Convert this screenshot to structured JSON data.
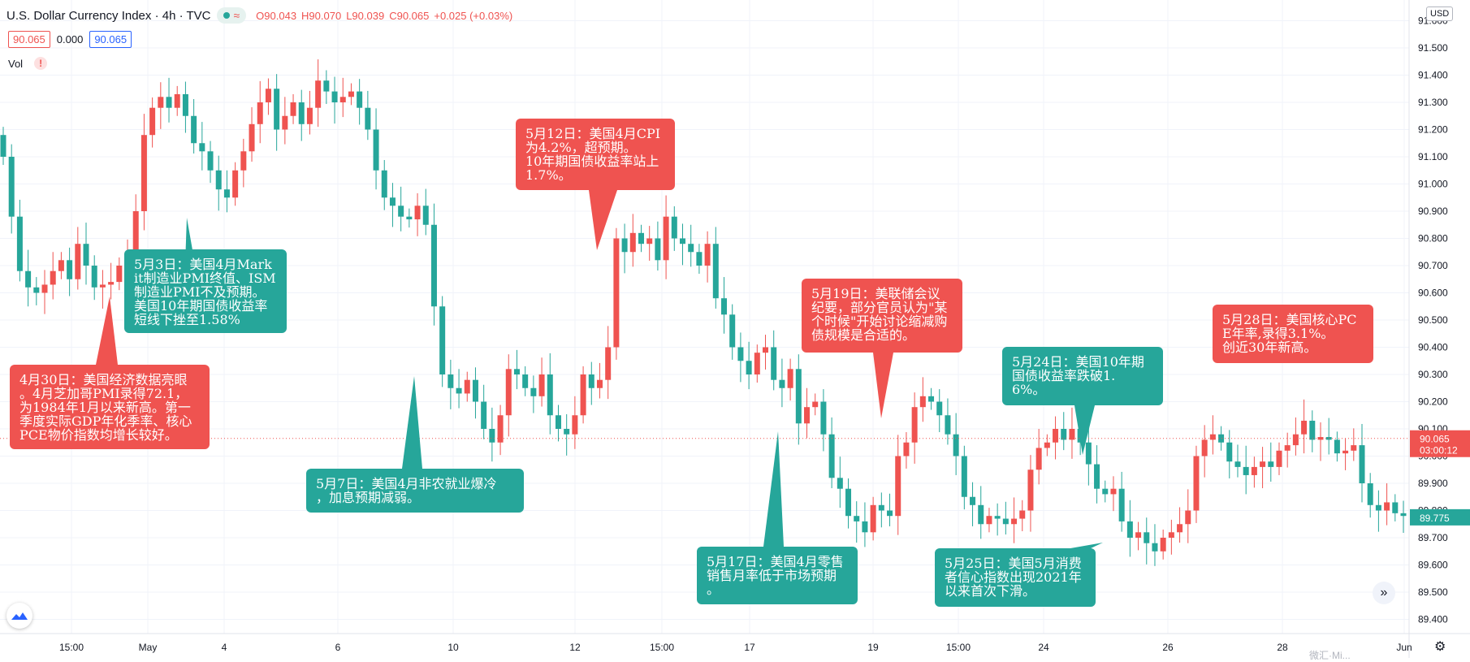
{
  "header": {
    "title": "U.S. Dollar Currency Index · 4h · TVC",
    "open": "O90.043",
    "high": "H90.070",
    "low": "L90.039",
    "close": "C90.065",
    "change": "+0.025 (+0.03%)",
    "bid": "90.065",
    "spread": "0.000",
    "ask": "90.065",
    "vol_label": "Vol",
    "currency": "USD",
    "wave_icon": "≈"
  },
  "colors": {
    "up": "#ef5350",
    "down": "#26a69a",
    "grid": "#f0f3fa"
  },
  "chart_data": {
    "type": "candlestick",
    "y_axis": {
      "ticks": [
        "89.400",
        "89.500",
        "89.600",
        "89.700",
        "89.800",
        "89.900",
        "90.000",
        "90.100",
        "90.200",
        "90.300",
        "90.400",
        "90.500",
        "90.600",
        "90.700",
        "90.800",
        "90.900",
        "91.000",
        "91.100",
        "91.200",
        "91.300",
        "91.400",
        "91.500",
        "91.600"
      ],
      "range": [
        89.37,
        91.65
      ],
      "current_price": "90.065",
      "countdown": "03:00:12",
      "last_label": "89.775"
    },
    "x_axis": {
      "labels": [
        "15:00",
        "May",
        "4",
        "6",
        "10",
        "12",
        "15:00",
        "17",
        "19",
        "15:00",
        "24",
        "26",
        "28",
        "Jun"
      ]
    },
    "closes": [
      91.1,
      90.88,
      90.68,
      90.62,
      90.6,
      90.63,
      90.68,
      90.72,
      90.65,
      90.78,
      90.7,
      90.62,
      90.63,
      90.64,
      90.7,
      90.75,
      90.9,
      91.18,
      91.28,
      91.32,
      91.28,
      91.33,
      91.25,
      91.15,
      91.12,
      91.05,
      90.98,
      90.95,
      91.05,
      91.12,
      91.22,
      91.3,
      91.35,
      91.2,
      91.25,
      91.3,
      91.22,
      91.28,
      91.38,
      91.34,
      91.3,
      91.32,
      91.34,
      91.28,
      91.2,
      91.05,
      90.95,
      90.92,
      90.88,
      90.87,
      90.92,
      90.85,
      90.55,
      90.3,
      90.25,
      90.23,
      90.28,
      90.2,
      90.1,
      90.05,
      90.15,
      90.32,
      90.3,
      90.25,
      90.22,
      90.3,
      90.15,
      90.1,
      90.08,
      90.15,
      90.3,
      90.25,
      90.28,
      90.4,
      90.8,
      90.75,
      90.82,
      90.78,
      90.8,
      90.72,
      90.88,
      90.8,
      90.78,
      90.75,
      90.7,
      90.78,
      90.58,
      90.52,
      90.4,
      90.35,
      90.3,
      90.38,
      90.4,
      90.28,
      90.25,
      90.32,
      90.12,
      90.18,
      90.2,
      90.08,
      89.92,
      89.88,
      89.78,
      89.76,
      89.72,
      89.82,
      89.8,
      89.78,
      90.0,
      90.05,
      90.18,
      90.22,
      90.2,
      90.15,
      90.08,
      90.0,
      89.85,
      89.82,
      89.75,
      89.78,
      89.77,
      89.75,
      89.77,
      89.8,
      89.95,
      90.03,
      90.05,
      90.1,
      90.06,
      90.1,
      90.05,
      89.97,
      89.88,
      89.86,
      89.88,
      89.76,
      89.7,
      89.72,
      89.68,
      89.65,
      89.7,
      89.72,
      89.75,
      89.8,
      90.0,
      90.06,
      90.08,
      90.05,
      89.98,
      89.96,
      89.93,
      89.96,
      89.98,
      89.96,
      90.02,
      90.04,
      90.08,
      90.13,
      90.06,
      90.07,
      90.06,
      90.01,
      90.02,
      90.04,
      89.9,
      89.82,
      89.8,
      89.83,
      89.79,
      89.78
    ],
    "annotations": [
      {
        "date": "5月12日",
        "text": "5月12日：美国4月CPI\n为4.2%，超预期。\n10年期国债收益率站上\n1.7%。"
      },
      {
        "date": "5月3日",
        "text": "5月3日：美国4月Mark\nit制造业PMI终值、ISM\n制造业PMI不及预期。\n美国10年期国债收益率\n短线下挫至1.58%"
      },
      {
        "date": "4月30日",
        "text": "4月30日：美国经济数据亮眼\n。4月芝加哥PMI录得72.1，\n为1984年1月以来新高。第一\n季度实际GDP年化季率、核心\nPCE物价指数均增长较好。"
      },
      {
        "date": "5月7日",
        "text": "5月7日：美国4月非农就业爆冷\n，加息预期减弱。"
      },
      {
        "date": "5月19日",
        "text": "5月19日：美联储会议\n纪要，部分官员认为\"某\n个时候\"开始讨论缩减购\n债规模是合适的。"
      },
      {
        "date": "5月24日",
        "text": "5月24日：美国10年期\n国债收益率跌破1.\n6%。"
      },
      {
        "date": "5月28日",
        "text": "5月28日：美国核心PC\nE年率,录得3.1%。\n创近30年新高。"
      },
      {
        "date": "5月17日",
        "text": "5月17日：美国4月零售\n销售月率低于市场预期\n。"
      },
      {
        "date": "5月25日",
        "text": "5月25日：美国5月消费\n者信心指数出现2021年\n以来首次下滑。"
      }
    ]
  },
  "buttons": {
    "scroll_right": "»",
    "settings": "⚙"
  },
  "watermark": "微汇·Mi..."
}
